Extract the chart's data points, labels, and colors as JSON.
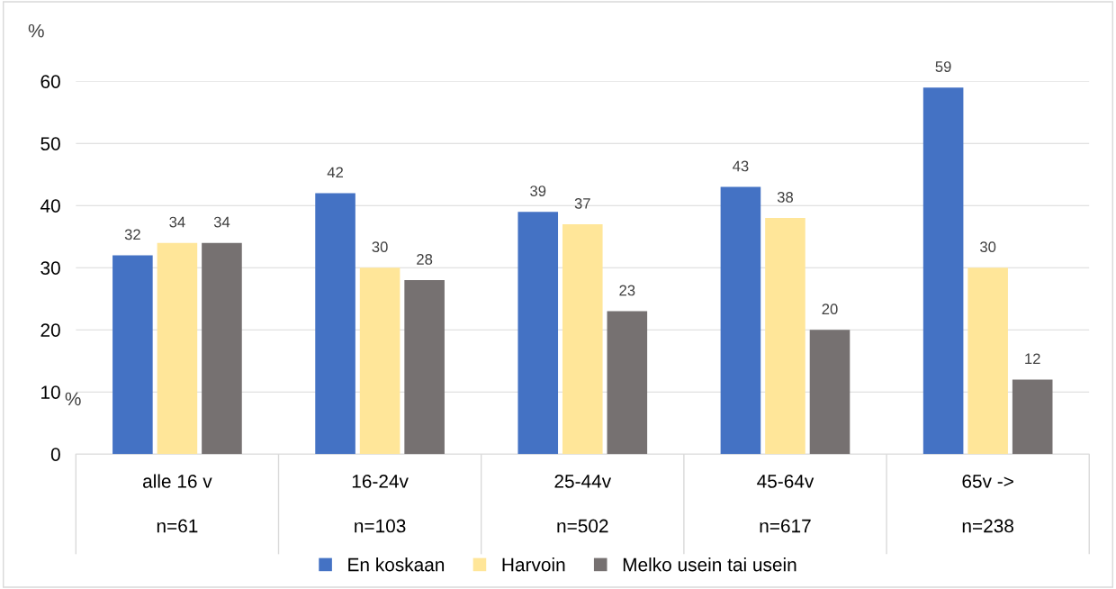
{
  "chart_data": {
    "type": "bar",
    "categories": [
      "alle 16 v\nn=61",
      "16-24v\nn=103",
      "25-44v\nn=502",
      "45-64v\nn=617",
      "65v ->\nn=238"
    ],
    "series": [
      {
        "name": "En koskaan",
        "color": "#4472c4",
        "values": [
          32,
          42,
          39,
          43,
          59
        ]
      },
      {
        "name": "Harvoin",
        "color": "#ffe699",
        "values": [
          34,
          30,
          37,
          38,
          30
        ]
      },
      {
        "name": "Melko usein tai usein",
        "color": "#767171",
        "values": [
          34,
          28,
          23,
          20,
          12
        ]
      }
    ],
    "ylim": [
      0,
      60
    ],
    "yticks": [
      0,
      10,
      20,
      30,
      40,
      50,
      60
    ],
    "grid": "y",
    "legend": "bottom",
    "data_labels": true,
    "annotations": [
      "%",
      "%"
    ]
  }
}
